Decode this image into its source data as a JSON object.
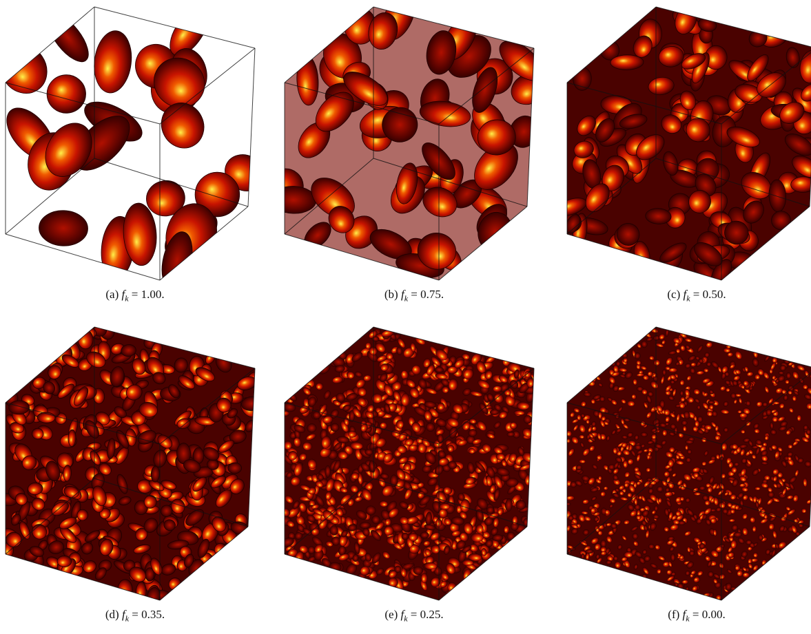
{
  "panels": [
    {
      "label": "(a)",
      "variable": "f",
      "subscript": "k",
      "operator": "=",
      "value": "1.00."
    },
    {
      "label": "(b)",
      "variable": "f",
      "subscript": "k",
      "operator": "=",
      "value": "0.75."
    },
    {
      "label": "(c)",
      "variable": "f",
      "subscript": "k",
      "operator": "=",
      "value": "0.50."
    },
    {
      "label": "(d)",
      "variable": "f",
      "subscript": "k",
      "operator": "=",
      "value": "0.35."
    },
    {
      "label": "(e)",
      "variable": "f",
      "subscript": "k",
      "operator": "=",
      "value": "0.25."
    },
    {
      "label": "(f)",
      "variable": "f",
      "subscript": "k",
      "operator": "=",
      "value": "0.00."
    }
  ]
}
